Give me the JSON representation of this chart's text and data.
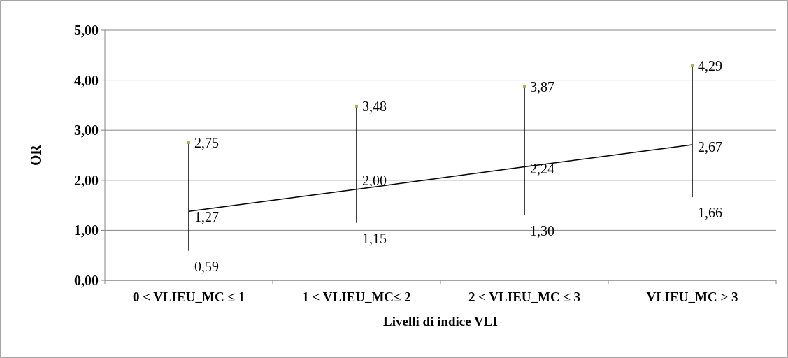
{
  "chart_data": {
    "type": "scatter",
    "xlabel": "Livelli di indice VLI",
    "ylabel": "OR",
    "categories": [
      "0 < VLIEU_MC ≤ 1",
      "1 < VLIEU_MC≤ 2",
      "2 < VLIEU_MC ≤ 3",
      "VLIEU_MC > 3"
    ],
    "series": [
      {
        "type": "bar",
        "color": "#000000",
        "base": [
          0.59,
          1.15,
          1.3,
          1.66
        ],
        "values": [
          2.16,
          2.33,
          2.57,
          2.63
        ]
      },
      {
        "color": "#9bbb59",
        "marker": "square",
        "values": [
          2.75,
          3.48,
          3.87,
          4.29
        ],
        "value_labels": [
          "2,75",
          "3,48",
          "3,87",
          "4,29"
        ]
      },
      {
        "type": "line",
        "color": "#000000",
        "values": [
          1.38,
          1.82,
          2.27,
          2.71
        ]
      }
    ],
    "annotations": [
      {
        "text": "1,27",
        "x": "0 < VLIEU_MC ≤ 1",
        "y": 1.27
      },
      {
        "text": "2,00",
        "x": "1 < VLIEU_MC≤ 2",
        "y": 2.0
      },
      {
        "text": "2,24",
        "x": "2 < VLIEU_MC ≤ 3",
        "y": 2.24
      },
      {
        "text": "2,67",
        "x": "VLIEU_MC > 3",
        "y": 2.67
      },
      {
        "text": "0,59",
        "x": "0 < VLIEU_MC ≤ 1",
        "y": 0.59
      },
      {
        "text": "1,15",
        "x": "1 < VLIEU_MC≤ 2",
        "y": 1.15
      },
      {
        "text": "1,30",
        "x": "2 < VLIEU_MC ≤ 3",
        "y": 1.3
      },
      {
        "text": "1,66",
        "x": "VLIEU_MC > 3",
        "y": 1.66
      }
    ],
    "ylim": [
      0,
      5
    ],
    "yticks": [
      {
        "value": 0,
        "label": "0,00"
      },
      {
        "value": 1,
        "label": "1,00"
      },
      {
        "value": 2,
        "label": "2,00"
      },
      {
        "value": 3,
        "label": "3,00"
      },
      {
        "value": 4,
        "label": "4,00"
      },
      {
        "value": 5,
        "label": "5,00"
      }
    ],
    "grid": "y"
  }
}
